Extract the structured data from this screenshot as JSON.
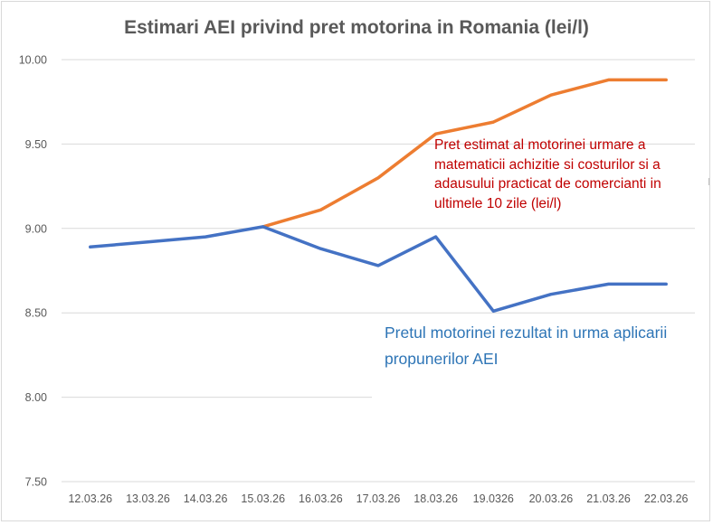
{
  "chart_data": {
    "type": "line",
    "title": "Estimari AEI privind pret motorina in Romania (lei/l)",
    "xlabel": "",
    "ylabel": "",
    "categories": [
      "12.03.26",
      "13.03.26",
      "14.03.26",
      "15.03.26",
      "16.03.26",
      "17.03.26",
      "18.03.26",
      "19.0326",
      "20.03.26",
      "21.03.26",
      "22.03.26"
    ],
    "ylim": [
      7.5,
      10.0
    ],
    "yticks": [
      "10.00",
      "9.50",
      "9.00",
      "8.50",
      "8.00",
      "7.50"
    ],
    "ytick_values": [
      10.0,
      9.5,
      9.0,
      8.5,
      8.0,
      7.5
    ],
    "grid": true,
    "series": [
      {
        "color": "#ed7d31",
        "values": [
          null,
          null,
          null,
          9.01,
          9.11,
          9.3,
          9.56,
          9.63,
          9.79,
          9.88,
          9.88
        ]
      },
      {
        "color": "#4472c4",
        "values": [
          8.89,
          8.92,
          8.95,
          9.01,
          8.88,
          8.78,
          8.95,
          8.51,
          8.61,
          8.67,
          8.67
        ]
      }
    ],
    "annotations": [
      {
        "lines": [
          "Pret estimat al motorinei urmare a",
          "matematicii achizitie si costurilor si a",
          "adausului practicat de comercianti in",
          "ultimele 10 zile (lei/l)"
        ],
        "color": "#c00000"
      },
      {
        "lines": [
          "Pretul motorinei rezultat in urma aplicarii",
          "propunerilor AEI"
        ],
        "color": "#2e75b6"
      }
    ]
  }
}
